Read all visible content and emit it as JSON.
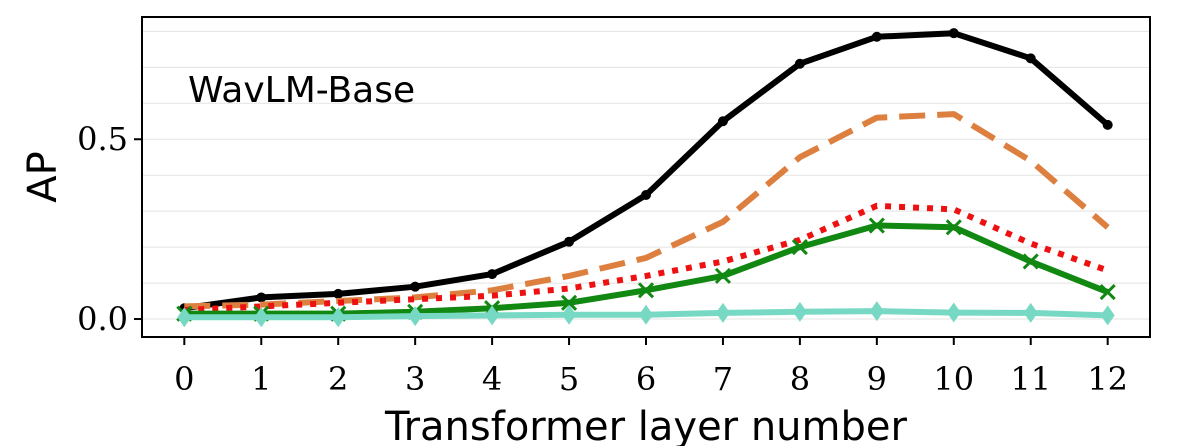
{
  "chart_data": {
    "type": "line",
    "annotation": "WavLM-Base",
    "xlabel": "Transformer layer number",
    "ylabel": "AP",
    "x": [
      0,
      1,
      2,
      3,
      4,
      5,
      6,
      7,
      8,
      9,
      10,
      11,
      12
    ],
    "xticks": [
      "0",
      "1",
      "2",
      "3",
      "4",
      "5",
      "6",
      "7",
      "8",
      "9",
      "10",
      "11",
      "12"
    ],
    "yticks": [
      {
        "value": 0.0,
        "label": "0.0"
      },
      {
        "value": 0.5,
        "label": "0.5"
      }
    ],
    "xlim": [
      -0.55,
      12.55
    ],
    "ylim": [
      -0.05,
      0.84
    ],
    "grid": "horizontal",
    "series": [
      {
        "color": "#000000",
        "style": "solid",
        "marker": "dot",
        "values": [
          0.03,
          0.06,
          0.07,
          0.09,
          0.125,
          0.215,
          0.345,
          0.55,
          0.71,
          0.785,
          0.795,
          0.725,
          0.54
        ]
      },
      {
        "color": "#dd7f3f",
        "style": "dashed",
        "marker": "none",
        "values": [
          0.035,
          0.04,
          0.05,
          0.06,
          0.08,
          0.12,
          0.17,
          0.27,
          0.45,
          0.56,
          0.57,
          0.44,
          0.255
        ]
      },
      {
        "color": "#ee1111",
        "style": "dotted",
        "marker": "none",
        "values": [
          0.025,
          0.035,
          0.045,
          0.055,
          0.065,
          0.085,
          0.12,
          0.16,
          0.22,
          0.315,
          0.305,
          0.21,
          0.135
        ]
      },
      {
        "color": "#118811",
        "style": "solid",
        "marker": "x",
        "values": [
          0.015,
          0.015,
          0.015,
          0.02,
          0.03,
          0.045,
          0.08,
          0.12,
          0.2,
          0.26,
          0.255,
          0.16,
          0.075
        ]
      },
      {
        "color": "#77d9c4",
        "style": "solid",
        "marker": "diamond",
        "values": [
          0.005,
          0.005,
          0.005,
          0.008,
          0.01,
          0.012,
          0.012,
          0.017,
          0.02,
          0.022,
          0.018,
          0.017,
          0.01
        ]
      }
    ]
  }
}
